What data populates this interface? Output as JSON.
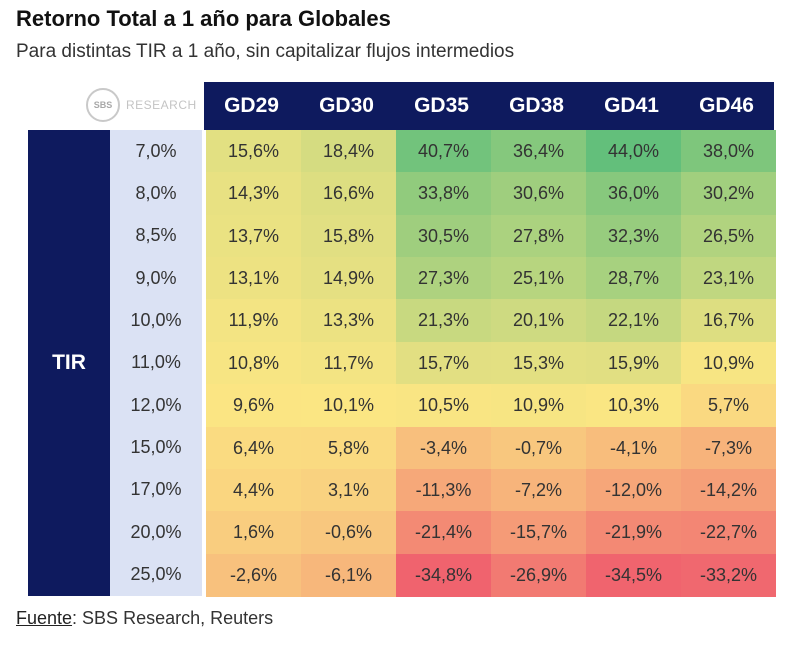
{
  "chart_data": {
    "type": "heatmap",
    "title": "Retorno Total a 1 año para Globales",
    "subtitle": "Para distintas TIR a 1 año, sin capitalizar flujos intermedios",
    "row_axis_label": "TIR",
    "columns": [
      "GD29",
      "GD30",
      "GD35",
      "GD38",
      "GD41",
      "GD46"
    ],
    "rows": [
      "7,0%",
      "8,0%",
      "8,5%",
      "9,0%",
      "10,0%",
      "11,0%",
      "12,0%",
      "15,0%",
      "17,0%",
      "20,0%",
      "25,0%"
    ],
    "values": [
      [
        15.6,
        18.4,
        40.7,
        36.4,
        44.0,
        38.0
      ],
      [
        14.3,
        16.6,
        33.8,
        30.6,
        36.0,
        30.2
      ],
      [
        13.7,
        15.8,
        30.5,
        27.8,
        32.3,
        26.5
      ],
      [
        13.1,
        14.9,
        27.3,
        25.1,
        28.7,
        23.1
      ],
      [
        11.9,
        13.3,
        21.3,
        20.1,
        22.1,
        16.7
      ],
      [
        10.8,
        11.7,
        15.7,
        15.3,
        15.9,
        10.9
      ],
      [
        9.6,
        10.1,
        10.5,
        10.9,
        10.3,
        5.7
      ],
      [
        6.4,
        5.8,
        -3.4,
        -0.7,
        -4.1,
        -7.3
      ],
      [
        4.4,
        3.1,
        -11.3,
        -7.2,
        -12.0,
        -14.2
      ],
      [
        1.6,
        -0.6,
        -21.4,
        -15.7,
        -21.9,
        -22.7
      ],
      [
        -2.6,
        -6.1,
        -34.8,
        -26.9,
        -34.5,
        -33.2
      ]
    ],
    "labels": [
      [
        "15,6%",
        "18,4%",
        "40,7%",
        "36,4%",
        "44,0%",
        "38,0%"
      ],
      [
        "14,3%",
        "16,6%",
        "33,8%",
        "30,6%",
        "36,0%",
        "30,2%"
      ],
      [
        "13,7%",
        "15,8%",
        "30,5%",
        "27,8%",
        "32,3%",
        "26,5%"
      ],
      [
        "13,1%",
        "14,9%",
        "27,3%",
        "25,1%",
        "28,7%",
        "23,1%"
      ],
      [
        "11,9%",
        "13,3%",
        "21,3%",
        "20,1%",
        "22,1%",
        "16,7%"
      ],
      [
        "10,8%",
        "11,7%",
        "15,7%",
        "15,3%",
        "15,9%",
        "10,9%"
      ],
      [
        "9,6%",
        "10,1%",
        "10,5%",
        "10,9%",
        "10,3%",
        "5,7%"
      ],
      [
        "6,4%",
        "5,8%",
        "-3,4%",
        "-0,7%",
        "-4,1%",
        "-7,3%"
      ],
      [
        "4,4%",
        "3,1%",
        "-11,3%",
        "-7,2%",
        "-12,0%",
        "-14,2%"
      ],
      [
        "1,6%",
        "-0,6%",
        "-21,4%",
        "-15,7%",
        "-21,9%",
        "-22,7%"
      ],
      [
        "-2,6%",
        "-6,1%",
        "-34,8%",
        "-26,9%",
        "-34,5%",
        "-33,2%"
      ]
    ],
    "color_scale": {
      "low": "#f0636e",
      "mid": "#fbe683",
      "high": "#63bf7b"
    }
  },
  "logo": {
    "badge_text": "SBS",
    "text": "RESEARCH"
  },
  "source": {
    "label": "Fuente",
    "text": ": SBS Research, Reuters"
  },
  "colors": {
    "header_bg": "#0e1a5e",
    "row_label_bg": "#dbe2f4"
  }
}
